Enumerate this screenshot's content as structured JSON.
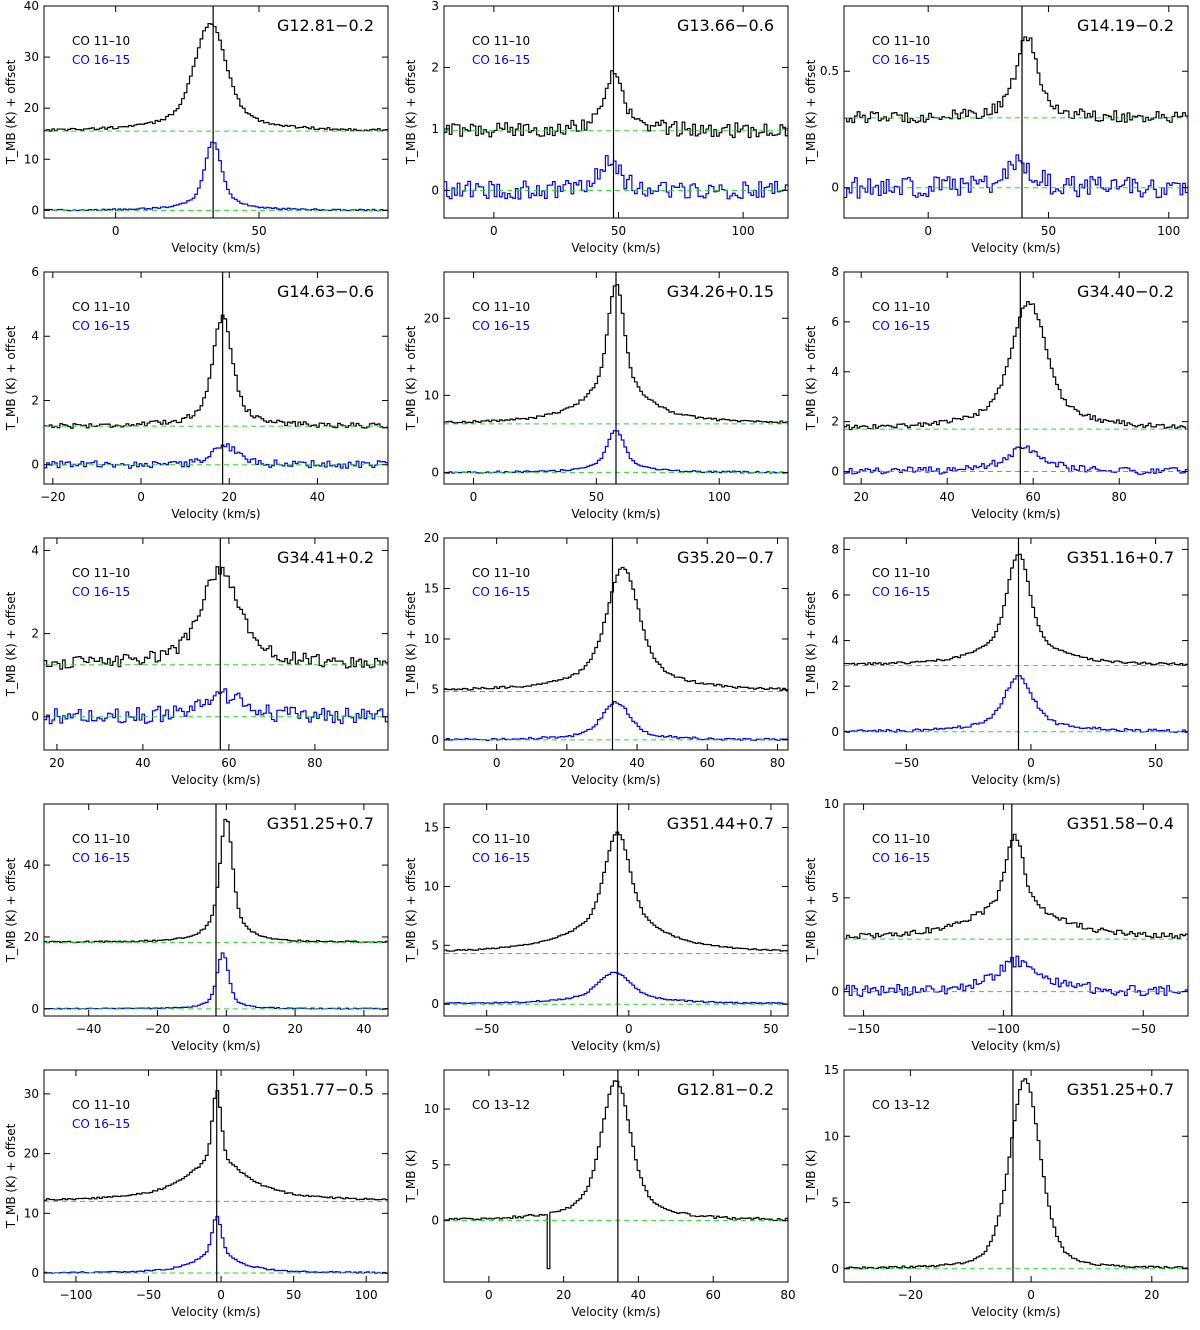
{
  "figure": {
    "description_visible": false
  },
  "chart_data": [
    {
      "type": "line",
      "title": "G12.81−0.2",
      "xlabel": "Velocity (km/s)",
      "ylabel": "T_MB (K) + offset",
      "legend": [
        "CO 11–10",
        "CO 16–15"
      ],
      "xlim": [
        -25,
        95
      ],
      "ylim": [
        -1.5,
        40
      ],
      "xticks": [
        0,
        50
      ],
      "yticks": [
        0,
        10,
        20,
        30,
        40
      ],
      "vline": 34,
      "series": [
        {
          "name": "CO 11–10",
          "color": "#000000",
          "baseline": 15.5,
          "peak": 36.5,
          "center": 33,
          "width": 5,
          "wing": 10,
          "noise": 0.25
        },
        {
          "name": "CO 16–15",
          "color": "#0000ff",
          "baseline": 0,
          "peak": 13.5,
          "center": 34,
          "width": 2.5,
          "wing": 6,
          "noise": 0.15
        }
      ]
    },
    {
      "type": "line",
      "title": "G13.66−0.6",
      "xlabel": "Velocity (km/s)",
      "ylabel": "T_MB (K) + offset",
      "legend": [
        "CO 11–10",
        "CO 16–15"
      ],
      "xlim": [
        -20,
        118
      ],
      "ylim": [
        -0.45,
        3
      ],
      "xticks": [
        0,
        50,
        100
      ],
      "yticks": [
        0,
        1,
        2,
        3
      ],
      "vline": 48,
      "series": [
        {
          "name": "CO 11–10",
          "color": "#000000",
          "baseline": 0.97,
          "peak": 1.9,
          "center": 48,
          "width": 3,
          "wing": 8,
          "noise": 0.12
        },
        {
          "name": "CO 16–15",
          "color": "#0000ff",
          "baseline": 0,
          "peak": 0.45,
          "center": 46,
          "width": 4,
          "wing": 8,
          "noise": 0.15
        }
      ]
    },
    {
      "type": "line",
      "title": "G14.19−0.2",
      "xlabel": "Velocity (km/s)",
      "ylabel": "T_MB (K) + offset",
      "legend": [
        "CO 11–10",
        "CO 16–15"
      ],
      "xlim": [
        -35,
        108
      ],
      "ylim": [
        -0.13,
        0.78
      ],
      "xticks": [
        0,
        50,
        100
      ],
      "yticks": [
        0,
        0.5
      ],
      "vline": 39,
      "series": [
        {
          "name": "CO 11–10",
          "color": "#000000",
          "baseline": 0.3,
          "peak": 0.64,
          "center": 41,
          "width": 4,
          "wing": 8,
          "noise": 0.025
        },
        {
          "name": "CO 16–15",
          "color": "#0000ff",
          "baseline": 0,
          "peak": 0.1,
          "center": 38,
          "width": 6,
          "wing": 8,
          "noise": 0.045
        }
      ]
    },
    {
      "type": "line",
      "title": "G14.63−0.6",
      "xlabel": "Velocity (km/s)",
      "ylabel": "T_MB (K) + offset",
      "legend": [
        "CO 11–10",
        "CO 16–15"
      ],
      "xlim": [
        -22,
        56
      ],
      "ylim": [
        -0.6,
        6
      ],
      "xticks": [
        -20,
        0,
        20,
        40
      ],
      "yticks": [
        0,
        2,
        4,
        6
      ],
      "vline": 18.5,
      "series": [
        {
          "name": "CO 11–10",
          "color": "#000000",
          "baseline": 1.2,
          "peak": 4.6,
          "center": 18.5,
          "width": 2,
          "wing": 4,
          "noise": 0.08
        },
        {
          "name": "CO 16–15",
          "color": "#0000ff",
          "baseline": 0,
          "peak": 0.6,
          "center": 19,
          "width": 2.5,
          "wing": 4,
          "noise": 0.12
        }
      ]
    },
    {
      "type": "line",
      "title": "G34.26+0.15",
      "xlabel": "Velocity (km/s)",
      "ylabel": "T_MB (K) + offset",
      "legend": [
        "CO 11–10",
        "CO 16–15"
      ],
      "xlim": [
        -12,
        128
      ],
      "ylim": [
        -1.5,
        26
      ],
      "xticks": [
        0,
        50,
        100
      ],
      "yticks": [
        0,
        10,
        20
      ],
      "vline": 58,
      "series": [
        {
          "name": "CO 11–10",
          "color": "#000000",
          "baseline": 6.3,
          "peak": 24.5,
          "center": 58,
          "width": 3,
          "wing": 12,
          "noise": 0.15
        },
        {
          "name": "CO 16–15",
          "color": "#0000ff",
          "baseline": 0,
          "peak": 5.5,
          "center": 58,
          "width": 3,
          "wing": 8,
          "noise": 0.12
        }
      ]
    },
    {
      "type": "line",
      "title": "G34.40−0.2",
      "xlabel": "Velocity (km/s)",
      "ylabel": "T_MB (K) + offset",
      "legend": [
        "CO 11–10",
        "CO 16–15"
      ],
      "xlim": [
        16,
        96
      ],
      "ylim": [
        -0.5,
        8
      ],
      "xticks": [
        20,
        40,
        60,
        80
      ],
      "yticks": [
        0,
        2,
        4,
        6,
        8
      ],
      "vline": 57,
      "series": [
        {
          "name": "CO 11–10",
          "color": "#000000",
          "baseline": 1.7,
          "peak": 6.8,
          "center": 59,
          "width": 3.5,
          "wing": 8,
          "noise": 0.1
        },
        {
          "name": "CO 16–15",
          "color": "#0000ff",
          "baseline": 0,
          "peak": 0.9,
          "center": 58,
          "width": 4,
          "wing": 8,
          "noise": 0.15
        }
      ]
    },
    {
      "type": "line",
      "title": "G34.41+0.2",
      "xlabel": "Velocity (km/s)",
      "ylabel": "T_MB (K) + offset",
      "legend": [
        "CO 11–10",
        "CO 16–15"
      ],
      "xlim": [
        17,
        97
      ],
      "ylim": [
        -0.8,
        4.3
      ],
      "xticks": [
        20,
        40,
        60,
        80
      ],
      "yticks": [
        0,
        2,
        4
      ],
      "vline": 58,
      "series": [
        {
          "name": "CO 11–10",
          "color": "#000000",
          "baseline": 1.25,
          "peak": 3.5,
          "center": 58,
          "width": 4,
          "wing": 8,
          "noise": 0.15
        },
        {
          "name": "CO 16–15",
          "color": "#0000ff",
          "baseline": 0,
          "peak": 0.55,
          "center": 58,
          "width": 5,
          "wing": 8,
          "noise": 0.2
        }
      ]
    },
    {
      "type": "line",
      "title": "G35.20−0.7",
      "xlabel": "Velocity (km/s)",
      "ylabel": "T_MB (K) + offset",
      "legend": [
        "CO 11–10",
        "CO 16–15"
      ],
      "xlim": [
        -15,
        83
      ],
      "ylim": [
        -1,
        20
      ],
      "xticks": [
        0,
        20,
        40,
        60,
        80
      ],
      "yticks": [
        0,
        5,
        10,
        15,
        20
      ],
      "vline": 33,
      "series": [
        {
          "name": "CO 11–10",
          "color": "#000000",
          "baseline": 4.8,
          "peak": 17,
          "center": 36,
          "width": 4,
          "wing": 10,
          "noise": 0.12
        },
        {
          "name": "CO 16–15",
          "color": "#0000ff",
          "baseline": 0,
          "peak": 3.7,
          "center": 34,
          "width": 3.5,
          "wing": 8,
          "noise": 0.12
        }
      ]
    },
    {
      "type": "line",
      "title": "G351.16+0.7",
      "xlabel": "Velocity (km/s)",
      "ylabel": "T_MB (K) + offset",
      "legend": [
        "CO 11–10",
        "CO 16–15"
      ],
      "xlim": [
        -75,
        63
      ],
      "ylim": [
        -0.8,
        8.5
      ],
      "xticks": [
        -50,
        0,
        50
      ],
      "yticks": [
        0,
        2,
        4,
        6,
        8
      ],
      "vline": -5,
      "series": [
        {
          "name": "CO 11–10",
          "color": "#000000",
          "baseline": 2.9,
          "peak": 7.8,
          "center": -5,
          "width": 4,
          "wing": 12,
          "noise": 0.05
        },
        {
          "name": "CO 16–15",
          "color": "#0000ff",
          "baseline": 0,
          "peak": 2.4,
          "center": -5,
          "width": 5,
          "wing": 12,
          "noise": 0.07
        }
      ]
    },
    {
      "type": "line",
      "title": "G351.25+0.7",
      "xlabel": "Velocity (km/s)",
      "ylabel": "T_MB (K) + offset",
      "legend": [
        "CO 11–10",
        "CO 16–15"
      ],
      "xlim": [
        -53,
        47
      ],
      "ylim": [
        -2,
        57
      ],
      "xticks": [
        -40,
        -20,
        0,
        20,
        40
      ],
      "yticks": [
        0,
        20,
        40
      ],
      "vline": -3,
      "series": [
        {
          "name": "CO 11–10",
          "color": "#000000",
          "baseline": 18.5,
          "peak": 53,
          "center": 0,
          "width": 1.6,
          "wing": 4,
          "noise": 0.2
        },
        {
          "name": "CO 16–15",
          "color": "#0000ff",
          "baseline": 0,
          "peak": 15.5,
          "center": -1,
          "width": 1.5,
          "wing": 3,
          "noise": 0.15
        }
      ]
    },
    {
      "type": "line",
      "title": "G351.44+0.7",
      "xlabel": "Velocity (km/s)",
      "ylabel": "T_MB (K) + offset",
      "legend": [
        "CO 11–10",
        "CO 16–15"
      ],
      "xlim": [
        -65,
        56
      ],
      "ylim": [
        -1,
        17
      ],
      "xticks": [
        -50,
        0,
        50
      ],
      "yticks": [
        0,
        5,
        10,
        15
      ],
      "vline": -4,
      "series": [
        {
          "name": "CO 11–10",
          "color": "#000000",
          "baseline": 4.3,
          "peak": 14.6,
          "center": -4,
          "width": 4,
          "wing": 15,
          "noise": 0.06
        },
        {
          "name": "CO 16–15",
          "color": "#0000ff",
          "baseline": 0,
          "peak": 2.7,
          "center": -5,
          "width": 5,
          "wing": 15,
          "noise": 0.06
        }
      ]
    },
    {
      "type": "line",
      "title": "G351.58−0.4",
      "xlabel": "Velocity (km/s)",
      "ylabel": "T_MB (K) + offset",
      "legend": [
        "CO 11–10",
        "CO 16–15"
      ],
      "xlim": [
        -157,
        -34
      ],
      "ylim": [
        -1.3,
        10
      ],
      "xticks": [
        -150,
        -100,
        -50
      ],
      "yticks": [
        0,
        5,
        10
      ],
      "vline": -97,
      "series": [
        {
          "name": "CO 11–10",
          "color": "#000000",
          "baseline": 2.8,
          "peak": 8.3,
          "center": -96,
          "width": 3,
          "wing": 16,
          "noise": 0.15
        },
        {
          "name": "CO 16–15",
          "color": "#0000ff",
          "baseline": 0,
          "peak": 1.6,
          "center": -95,
          "width": 6,
          "wing": 16,
          "noise": 0.3
        }
      ]
    },
    {
      "type": "line",
      "title": "G351.77−0.5",
      "xlabel": "Velocity (km/s)",
      "ylabel": "T_MB (K) + offset",
      "legend": [
        "CO 11–10",
        "CO 16–15"
      ],
      "xlim": [
        -122,
        115
      ],
      "ylim": [
        -1.5,
        34
      ],
      "xticks": [
        -100,
        -50,
        0,
        50,
        100
      ],
      "yticks": [
        0,
        10,
        20,
        30
      ],
      "vline": -3,
      "series": [
        {
          "name": "CO 11–10",
          "color": "#000000",
          "baseline": 12,
          "peak": 30.5,
          "center": -3,
          "width": 3,
          "wing": 24,
          "noise": 0.15
        },
        {
          "name": "CO 16–15",
          "color": "#0000ff",
          "baseline": 0,
          "peak": 9.5,
          "center": -3,
          "width": 3,
          "wing": 16,
          "noise": 0.12
        }
      ]
    },
    {
      "type": "line",
      "title": "G12.81−0.2",
      "xlabel": "Velocity (km/s)",
      "ylabel": "T_MB (K)",
      "legend": [
        "CO 13–12"
      ],
      "xlim": [
        -12,
        80
      ],
      "ylim": [
        -5.5,
        13.5
      ],
      "xticks": [
        0,
        20,
        40,
        60,
        80
      ],
      "yticks": [
        0,
        5,
        10
      ],
      "vline": 34.5,
      "series": [
        {
          "name": "CO 13–12",
          "color": "#000000",
          "baseline": 0,
          "peak": 12.5,
          "center": 34,
          "width": 3.5,
          "wing": 7,
          "noise": 0.12,
          "dip": {
            "center": 16,
            "depth": -4.3
          }
        }
      ]
    },
    {
      "type": "line",
      "title": "G351.25+0.7",
      "xlabel": "Velocity (km/s)",
      "ylabel": "T_MB (K)",
      "legend": [
        "CO 13–12"
      ],
      "xlim": [
        -31,
        26
      ],
      "ylim": [
        -1,
        15
      ],
      "xticks": [
        -20,
        0,
        20
      ],
      "yticks": [
        0,
        5,
        10,
        15
      ],
      "vline": -3,
      "series": [
        {
          "name": "CO 13–12",
          "color": "#000000",
          "baseline": 0,
          "peak": 14.3,
          "center": -1,
          "width": 2.6,
          "wing": 3,
          "noise": 0.08
        }
      ]
    }
  ]
}
